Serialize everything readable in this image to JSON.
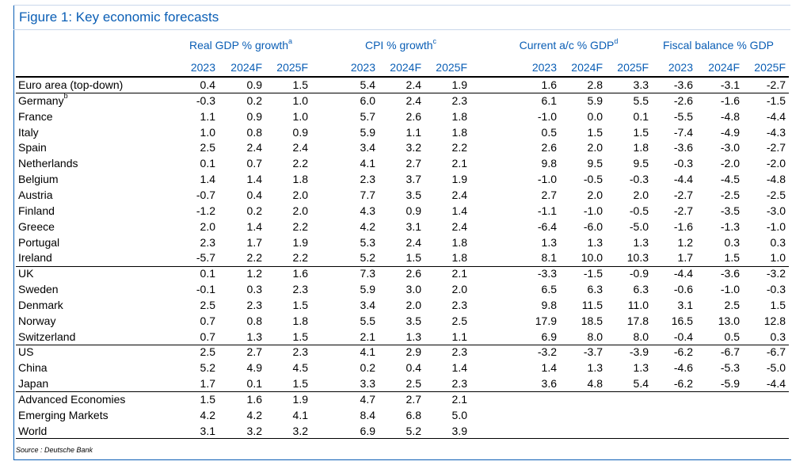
{
  "title": "Figure 1: Key economic forecasts",
  "groups": [
    {
      "label": "Real GDP % growth",
      "note": "a"
    },
    {
      "label": "CPI % growth",
      "note": "c"
    },
    {
      "label": "Current a/c % GDP",
      "note": "d"
    },
    {
      "label": "Fiscal balance % GDP",
      "note": ""
    }
  ],
  "years": [
    "2023",
    "2024F",
    "2025F"
  ],
  "rows": [
    {
      "name": "Euro area (top-down)",
      "note": "",
      "values": [
        "0.4",
        "0.9",
        "1.5",
        "5.4",
        "2.4",
        "1.9",
        "1.6",
        "2.8",
        "3.3",
        "-3.6",
        "-3.1",
        "-2.7"
      ]
    },
    {
      "name": "Germany",
      "note": "b",
      "values": [
        "-0.3",
        "0.2",
        "1.0",
        "6.0",
        "2.4",
        "2.3",
        "6.1",
        "5.9",
        "5.5",
        "-2.6",
        "-1.6",
        "-1.5"
      ]
    },
    {
      "name": "France",
      "note": "",
      "values": [
        "1.1",
        "0.9",
        "1.0",
        "5.7",
        "2.6",
        "1.8",
        "-1.0",
        "0.0",
        "0.1",
        "-5.5",
        "-4.8",
        "-4.4"
      ]
    },
    {
      "name": "Italy",
      "note": "",
      "values": [
        "1.0",
        "0.8",
        "0.9",
        "5.9",
        "1.1",
        "1.8",
        "0.5",
        "1.5",
        "1.5",
        "-7.4",
        "-4.9",
        "-4.3"
      ]
    },
    {
      "name": "Spain",
      "note": "",
      "values": [
        "2.5",
        "2.4",
        "2.4",
        "3.4",
        "3.2",
        "2.2",
        "2.6",
        "2.0",
        "1.8",
        "-3.6",
        "-3.0",
        "-2.7"
      ]
    },
    {
      "name": "Netherlands",
      "note": "",
      "values": [
        "0.1",
        "0.7",
        "2.2",
        "4.1",
        "2.7",
        "2.1",
        "9.8",
        "9.5",
        "9.5",
        "-0.3",
        "-2.0",
        "-2.0"
      ]
    },
    {
      "name": "Belgium",
      "note": "",
      "values": [
        "1.4",
        "1.4",
        "1.8",
        "2.3",
        "3.7",
        "1.9",
        "-1.0",
        "-0.5",
        "-0.3",
        "-4.4",
        "-4.5",
        "-4.8"
      ]
    },
    {
      "name": "Austria",
      "note": "",
      "values": [
        "-0.7",
        "0.4",
        "2.0",
        "7.7",
        "3.5",
        "2.4",
        "2.7",
        "2.0",
        "2.0",
        "-2.7",
        "-2.5",
        "-2.5"
      ]
    },
    {
      "name": "Finland",
      "note": "",
      "values": [
        "-1.2",
        "0.2",
        "2.0",
        "4.3",
        "0.9",
        "1.4",
        "-1.1",
        "-1.0",
        "-0.5",
        "-2.7",
        "-3.5",
        "-3.0"
      ]
    },
    {
      "name": "Greece",
      "note": "",
      "values": [
        "2.0",
        "1.4",
        "2.2",
        "4.2",
        "3.1",
        "2.4",
        "-6.4",
        "-6.0",
        "-5.0",
        "-1.6",
        "-1.3",
        "-1.0"
      ]
    },
    {
      "name": "Portugal",
      "note": "",
      "values": [
        "2.3",
        "1.7",
        "1.9",
        "5.3",
        "2.4",
        "1.8",
        "1.3",
        "1.3",
        "1.3",
        "1.2",
        "0.3",
        "0.3"
      ]
    },
    {
      "name": "Ireland",
      "note": "",
      "values": [
        "-5.7",
        "2.2",
        "2.2",
        "5.2",
        "1.5",
        "1.8",
        "8.1",
        "10.0",
        "10.3",
        "1.7",
        "1.5",
        "1.0"
      ]
    },
    {
      "name": "UK",
      "note": "",
      "values": [
        "0.1",
        "1.2",
        "1.6",
        "7.3",
        "2.6",
        "2.1",
        "-3.3",
        "-1.5",
        "-0.9",
        "-4.4",
        "-3.6",
        "-3.2"
      ]
    },
    {
      "name": "Sweden",
      "note": "",
      "values": [
        "-0.1",
        "0.3",
        "2.3",
        "5.9",
        "3.0",
        "2.0",
        "6.5",
        "6.3",
        "6.3",
        "-0.6",
        "-1.0",
        "-0.3"
      ]
    },
    {
      "name": "Denmark",
      "note": "",
      "values": [
        "2.5",
        "2.3",
        "1.5",
        "3.4",
        "2.0",
        "2.3",
        "9.8",
        "11.5",
        "11.0",
        "3.1",
        "2.5",
        "1.5"
      ]
    },
    {
      "name": "Norway",
      "note": "",
      "values": [
        "0.7",
        "0.8",
        "1.8",
        "5.5",
        "3.5",
        "2.5",
        "17.9",
        "18.5",
        "17.8",
        "16.5",
        "13.0",
        "12.8"
      ]
    },
    {
      "name": "Switzerland",
      "note": "",
      "values": [
        "0.7",
        "1.3",
        "1.5",
        "2.1",
        "1.3",
        "1.1",
        "6.9",
        "8.0",
        "8.0",
        "-0.4",
        "0.5",
        "0.3"
      ]
    },
    {
      "name": "US",
      "note": "",
      "values": [
        "2.5",
        "2.7",
        "2.3",
        "4.1",
        "2.9",
        "2.3",
        "-3.2",
        "-3.7",
        "-3.9",
        "-6.2",
        "-6.7",
        "-6.7"
      ]
    },
    {
      "name": "China",
      "note": "",
      "values": [
        "5.2",
        "4.9",
        "4.5",
        "0.2",
        "0.4",
        "1.4",
        "1.4",
        "1.3",
        "1.3",
        "-4.6",
        "-5.3",
        "-5.0"
      ]
    },
    {
      "name": "Japan",
      "note": "",
      "values": [
        "1.7",
        "0.1",
        "1.5",
        "3.3",
        "2.5",
        "2.3",
        "3.6",
        "4.8",
        "5.4",
        "-6.2",
        "-5.9",
        "-4.4"
      ]
    },
    {
      "name": "Advanced Economies",
      "note": "",
      "values": [
        "1.5",
        "1.6",
        "1.9",
        "4.7",
        "2.7",
        "2.1",
        "",
        "",
        "",
        "",
        "",
        ""
      ]
    },
    {
      "name": "Emerging Markets",
      "note": "",
      "values": [
        "4.2",
        "4.2",
        "4.1",
        "8.4",
        "6.8",
        "5.0",
        "",
        "",
        "",
        "",
        "",
        ""
      ]
    },
    {
      "name": "World",
      "note": "",
      "values": [
        "3.1",
        "3.2",
        "3.2",
        "6.9",
        "5.2",
        "3.9",
        "",
        "",
        "",
        "",
        "",
        ""
      ]
    }
  ],
  "source": "Source : Deutsche Bank"
}
